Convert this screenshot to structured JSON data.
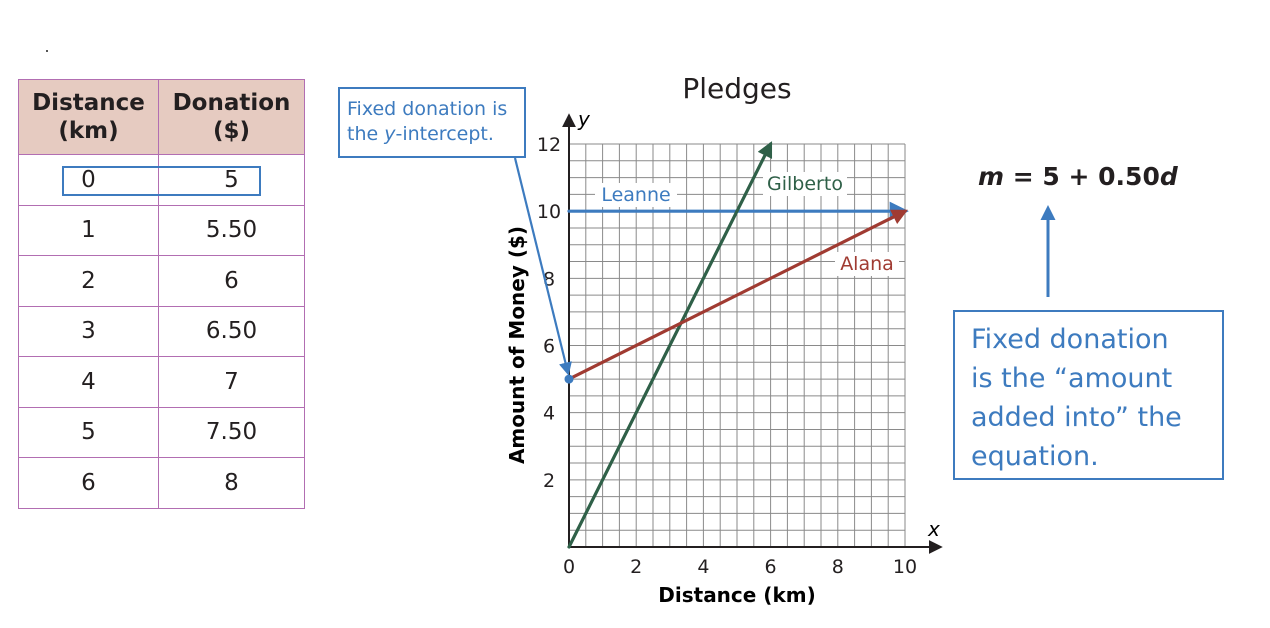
{
  "table": {
    "headers": [
      {
        "line1": "Distance",
        "line2": "(km)"
      },
      {
        "line1": "Donation",
        "line2": "($)"
      }
    ],
    "rows": [
      [
        "0",
        "5"
      ],
      [
        "1",
        "5.50"
      ],
      [
        "2",
        "6"
      ],
      [
        "3",
        "6.50"
      ],
      [
        "4",
        "7"
      ],
      [
        "5",
        "7.50"
      ],
      [
        "6",
        "8"
      ]
    ]
  },
  "callout_top": {
    "line1": "Fixed donation is",
    "line2_prefix": "the ",
    "line2_var": "y",
    "line2_suffix": "-intercept."
  },
  "equation": {
    "lhs": "m",
    "middle": " = 5 + 0.50",
    "var": "d"
  },
  "callout_right": {
    "lines": [
      "Fixed donation",
      "is the “amount",
      "added into” the",
      "equation."
    ]
  },
  "colors": {
    "blue": "#3d7bbf",
    "green": "#2f6048",
    "red": "#a03b32",
    "table_header": "#e6cbc1",
    "table_border": "#b26eb2"
  },
  "chart_data": {
    "type": "line",
    "title": "Pledges",
    "xlabel": "Distance (km)",
    "ylabel": "Amount of Money ($)",
    "x_axis_letter": "x",
    "y_axis_letter": "y",
    "xlim": [
      0,
      10
    ],
    "ylim": [
      0,
      12
    ],
    "xticks": [
      0,
      2,
      4,
      6,
      8,
      10
    ],
    "yticks": [
      2,
      4,
      6,
      8,
      10,
      12
    ],
    "grid": true,
    "series": [
      {
        "name": "Leanne",
        "color": "#3d7bbf",
        "x": [
          0,
          10
        ],
        "y": [
          10,
          10
        ]
      },
      {
        "name": "Gilberto",
        "color": "#2f6048",
        "x": [
          0,
          6
        ],
        "y": [
          0,
          12
        ]
      },
      {
        "name": "Alana",
        "color": "#a03b32",
        "x": [
          0,
          10
        ],
        "y": [
          5,
          10
        ]
      }
    ]
  }
}
